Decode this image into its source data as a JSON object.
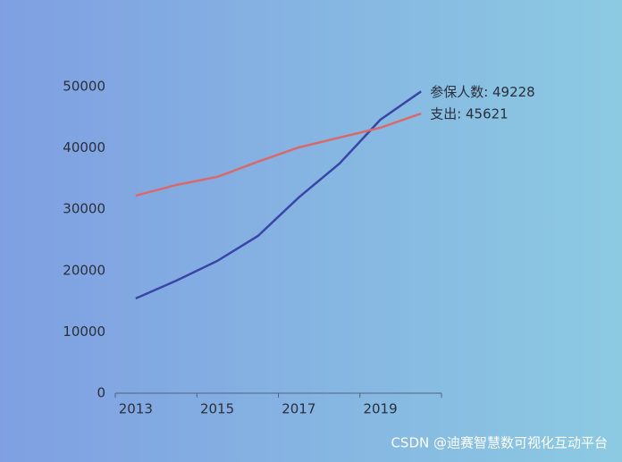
{
  "chart_data": {
    "type": "line",
    "categories": [
      "2013",
      null,
      "2015",
      null,
      "2017",
      null,
      "2019",
      null
    ],
    "series": [
      {
        "name": "参保人数",
        "color": "#3a46a6",
        "values": [
          15450,
          18370,
          21570,
          25660,
          31930,
          37470,
          44610,
          49228
        ],
        "value_labels": [
          null,
          null,
          null,
          null,
          null,
          null,
          null,
          "参保人数: 49228"
        ]
      },
      {
        "name": "支出",
        "color": "#d9696b",
        "values": [
          32220,
          33970,
          35280,
          37760,
          40090,
          41700,
          43300,
          45621
        ],
        "value_labels": [
          null,
          null,
          null,
          null,
          null,
          null,
          null,
          "支出: 45621"
        ]
      }
    ],
    "ylim": [
      0,
      50000
    ],
    "yticks": [
      0,
      10000,
      20000,
      30000,
      40000,
      50000
    ],
    "grid": false
  },
  "watermark": "CSDN @迪赛智慧数可视化互动平台"
}
